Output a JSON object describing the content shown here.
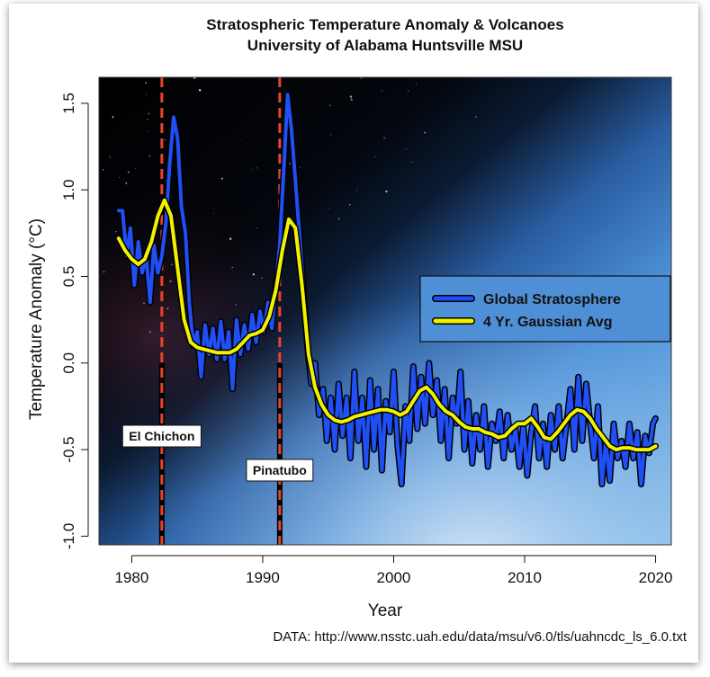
{
  "chart_data": {
    "type": "line",
    "title": "Stratospheric Temperature Anomaly & Volcanoes",
    "subtitle": "University of Alabama Huntsville MSU",
    "xlabel": "Year",
    "ylabel": "Temperature Anomaly (°C)",
    "xlim": [
      1977.5,
      2021.2
    ],
    "ylim": [
      -1.05,
      1.65
    ],
    "x_ticks": [
      "1980",
      "1990",
      "2000",
      "2010",
      "2020"
    ],
    "y_ticks": [
      "-1.0",
      "-0.5",
      "0.0",
      "0.5",
      "1.0",
      "1.5"
    ],
    "source": "DATA: http://www.nsstc.uah.edu/data/msu/v6.0/tls/uahncdc_ls_6.0.txt",
    "legend_position": "right",
    "series": [
      {
        "name": "Global Stratosphere",
        "color": "#1f4ff5",
        "x": [
          1979.0,
          1979.3,
          1979.6,
          1979.9,
          1980.2,
          1980.5,
          1980.8,
          1981.1,
          1981.4,
          1981.7,
          1982.0,
          1982.3,
          1982.6,
          1982.9,
          1983.2,
          1983.5,
          1983.8,
          1984.1,
          1984.4,
          1984.7,
          1985.0,
          1985.3,
          1985.6,
          1985.9,
          1986.2,
          1986.5,
          1986.8,
          1987.1,
          1987.4,
          1987.7,
          1988.0,
          1988.3,
          1988.6,
          1988.9,
          1989.2,
          1989.5,
          1989.8,
          1990.1,
          1990.4,
          1990.7,
          1991.0,
          1991.3,
          1991.6,
          1991.9,
          1992.2,
          1992.5,
          1992.8,
          1993.1,
          1993.4,
          1993.7,
          1994.0,
          1994.3,
          1994.6,
          1994.9,
          1995.2,
          1995.5,
          1995.8,
          1996.1,
          1996.4,
          1996.7,
          1997.0,
          1997.3,
          1997.6,
          1997.9,
          1998.2,
          1998.5,
          1998.8,
          1999.1,
          1999.4,
          1999.7,
          2000.0,
          2000.3,
          2000.6,
          2000.9,
          2001.2,
          2001.5,
          2001.8,
          2002.1,
          2002.4,
          2002.7,
          2003.0,
          2003.3,
          2003.6,
          2003.9,
          2004.2,
          2004.5,
          2004.8,
          2005.1,
          2005.4,
          2005.7,
          2006.0,
          2006.3,
          2006.6,
          2006.9,
          2007.2,
          2007.5,
          2007.8,
          2008.1,
          2008.4,
          2008.7,
          2009.0,
          2009.3,
          2009.6,
          2009.9,
          2010.2,
          2010.5,
          2010.8,
          2011.1,
          2011.4,
          2011.7,
          2012.0,
          2012.3,
          2012.6,
          2012.9,
          2013.2,
          2013.5,
          2013.8,
          2014.1,
          2014.4,
          2014.7,
          2015.0,
          2015.3,
          2015.6,
          2015.9,
          2016.2,
          2016.5,
          2016.8,
          2017.1,
          2017.4,
          2017.7,
          2018.0,
          2018.3,
          2018.6,
          2018.9,
          2019.2,
          2019.5,
          2019.8,
          2020.0
        ],
        "values": [
          0.88,
          0.88,
          0.62,
          0.78,
          0.45,
          0.7,
          0.52,
          0.62,
          0.35,
          0.68,
          0.52,
          0.62,
          0.8,
          1.15,
          1.42,
          1.3,
          0.9,
          0.75,
          0.35,
          0.1,
          0.18,
          -0.08,
          0.22,
          0.05,
          0.2,
          0.02,
          0.24,
          0.02,
          0.18,
          -0.15,
          0.25,
          0.05,
          0.22,
          0.08,
          0.28,
          0.12,
          0.3,
          0.18,
          0.35,
          0.2,
          0.45,
          0.68,
          1.1,
          1.55,
          1.35,
          1.05,
          0.75,
          0.45,
          0.1,
          -0.12,
          0.0,
          -0.3,
          -0.15,
          -0.45,
          -0.2,
          -0.5,
          -0.12,
          -0.42,
          -0.2,
          -0.55,
          -0.05,
          -0.45,
          -0.2,
          -0.6,
          -0.1,
          -0.5,
          -0.15,
          -0.62,
          -0.22,
          -0.4,
          -0.05,
          -0.48,
          -0.7,
          -0.25,
          -0.45,
          -0.02,
          -0.38,
          -0.08,
          -0.35,
          0.0,
          -0.3,
          -0.1,
          -0.45,
          -0.15,
          -0.55,
          -0.2,
          -0.35,
          -0.05,
          -0.5,
          -0.22,
          -0.58,
          -0.3,
          -0.5,
          -0.25,
          -0.6,
          -0.35,
          -0.45,
          -0.28,
          -0.55,
          -0.3,
          -0.5,
          -0.38,
          -0.6,
          -0.35,
          -0.65,
          -0.4,
          -0.25,
          -0.55,
          -0.35,
          -0.6,
          -0.3,
          -0.5,
          -0.25,
          -0.55,
          -0.35,
          -0.15,
          -0.5,
          -0.08,
          -0.45,
          -0.12,
          -0.35,
          -0.55,
          -0.25,
          -0.7,
          -0.45,
          -0.68,
          -0.35,
          -0.55,
          -0.45,
          -0.6,
          -0.35,
          -0.55,
          -0.4,
          -0.7,
          -0.42,
          -0.52,
          -0.35,
          -0.32
        ]
      },
      {
        "name": "4 Yr. Gaussian Avg",
        "color": "#f2f200",
        "x": [
          1979.0,
          1979.5,
          1980.0,
          1980.5,
          1981.0,
          1981.5,
          1982.0,
          1982.5,
          1983.0,
          1983.5,
          1984.0,
          1984.5,
          1985.0,
          1985.5,
          1986.0,
          1986.5,
          1987.0,
          1987.5,
          1988.0,
          1988.5,
          1989.0,
          1989.5,
          1990.0,
          1990.5,
          1991.0,
          1991.5,
          1992.0,
          1992.5,
          1993.0,
          1993.5,
          1994.0,
          1994.5,
          1995.0,
          1995.5,
          1996.0,
          1996.5,
          1997.0,
          1997.5,
          1998.0,
          1998.5,
          1999.0,
          1999.5,
          2000.0,
          2000.5,
          2001.0,
          2001.5,
          2002.0,
          2002.5,
          2003.0,
          2003.5,
          2004.0,
          2004.5,
          2005.0,
          2005.5,
          2006.0,
          2006.5,
          2007.0,
          2007.5,
          2008.0,
          2008.5,
          2009.0,
          2009.5,
          2010.0,
          2010.5,
          2011.0,
          2011.5,
          2012.0,
          2012.5,
          2013.0,
          2013.5,
          2014.0,
          2014.5,
          2015.0,
          2015.5,
          2016.0,
          2016.5,
          2017.0,
          2017.5,
          2018.0,
          2018.5,
          2019.0,
          2019.5,
          2020.0
        ],
        "values": [
          0.72,
          0.65,
          0.6,
          0.57,
          0.6,
          0.7,
          0.85,
          0.94,
          0.85,
          0.55,
          0.25,
          0.12,
          0.09,
          0.08,
          0.07,
          0.06,
          0.06,
          0.06,
          0.08,
          0.12,
          0.16,
          0.17,
          0.19,
          0.27,
          0.42,
          0.65,
          0.83,
          0.78,
          0.45,
          0.05,
          -0.14,
          -0.24,
          -0.3,
          -0.33,
          -0.34,
          -0.33,
          -0.31,
          -0.3,
          -0.29,
          -0.28,
          -0.27,
          -0.27,
          -0.28,
          -0.3,
          -0.28,
          -0.22,
          -0.16,
          -0.14,
          -0.18,
          -0.24,
          -0.28,
          -0.3,
          -0.34,
          -0.37,
          -0.38,
          -0.38,
          -0.4,
          -0.41,
          -0.43,
          -0.42,
          -0.38,
          -0.35,
          -0.35,
          -0.32,
          -0.37,
          -0.43,
          -0.44,
          -0.4,
          -0.35,
          -0.3,
          -0.27,
          -0.28,
          -0.32,
          -0.38,
          -0.43,
          -0.48,
          -0.5,
          -0.49,
          -0.49,
          -0.5,
          -0.5,
          -0.5,
          -0.48
        ]
      }
    ],
    "annotations": [
      {
        "label": "El Chichon",
        "x": 1982.3
      },
      {
        "label": "Pinatubo",
        "x": 1991.3
      }
    ]
  }
}
